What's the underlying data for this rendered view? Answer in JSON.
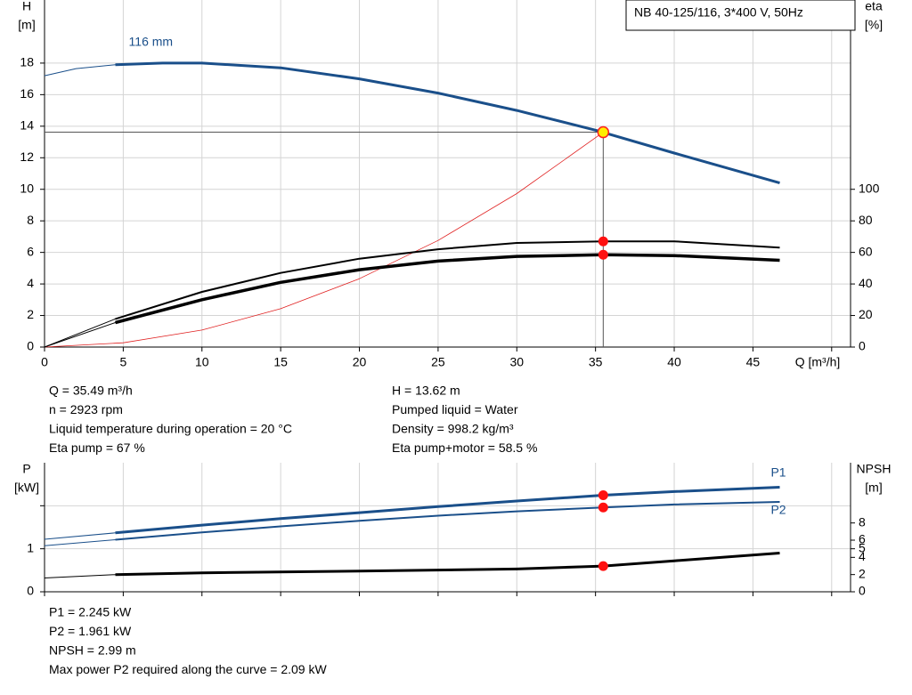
{
  "chart_data": [
    {
      "type": "line",
      "title": "NB 40-125/116, 3*400 V, 50Hz",
      "x_label": "Q [m³/h]",
      "y_label": [
        "H",
        "[m]"
      ],
      "y2_label": [
        "eta",
        "[%]"
      ],
      "xlim": [
        0,
        51.2
      ],
      "ylim": [
        0,
        22
      ],
      "y2lim": [
        0,
        220
      ],
      "xticks": [
        0,
        5,
        10,
        15,
        20,
        25,
        30,
        35,
        40,
        45,
        {
          "value": 50,
          "label": null
        }
      ],
      "yticks": [
        0,
        2,
        4,
        6,
        8,
        10,
        12,
        14,
        16,
        18
      ],
      "y2ticks": [
        0,
        20,
        40,
        60,
        80,
        100
      ],
      "grid": true,
      "series": [
        {
          "color": "#1a4f8a",
          "width": 1,
          "axis": "y",
          "x": [
            0,
            2,
            4.5
          ],
          "values": [
            17.2,
            17.65,
            17.9
          ]
        },
        {
          "name": "116 mm",
          "color": "#1a4f8a",
          "width": 3,
          "axis": "y",
          "x": [
            4.5,
            7.5,
            10,
            15,
            20,
            25,
            30,
            35,
            40,
            46.7
          ],
          "values": [
            17.9,
            18.0,
            18.0,
            17.7,
            17.0,
            16.1,
            15.0,
            13.75,
            12.3,
            10.4
          ]
        },
        {
          "color": "#e02020",
          "width": 0.8,
          "axis": "y",
          "x": [
            0,
            5,
            10,
            15,
            20,
            25,
            30,
            35.49
          ],
          "values": [
            0,
            0.27,
            1.08,
            2.43,
            4.33,
            6.76,
            9.73,
            13.62
          ]
        },
        {
          "color": "#000000",
          "width": 1,
          "axis": "y2",
          "x": [
            0,
            4.5
          ],
          "values": [
            0,
            17.8
          ]
        },
        {
          "color": "#000000",
          "width": 2,
          "axis": "y2",
          "x": [
            4.5,
            10,
            15,
            20,
            25,
            30,
            35.49,
            40,
            46.7
          ],
          "values": [
            17.8,
            35,
            47,
            56,
            62,
            66,
            67,
            67,
            63
          ]
        },
        {
          "color": "#000000",
          "width": 1,
          "axis": "y2",
          "x": [
            0,
            4.5
          ],
          "values": [
            0,
            15.5
          ]
        },
        {
          "color": "#000000",
          "width": 3.5,
          "axis": "y2",
          "x": [
            4.5,
            10,
            15,
            20,
            25,
            30,
            35.49,
            40,
            46.7
          ],
          "values": [
            15.5,
            30,
            41,
            49,
            54.5,
            57.5,
            58.5,
            58,
            55
          ]
        }
      ],
      "operating_point": {
        "x": 35.49,
        "y": 13.62,
        "color": "#ffee00"
      },
      "markers": [
        {
          "x": 35.49,
          "y": 67,
          "axis": "y2",
          "color": "#ff1010"
        },
        {
          "x": 35.49,
          "y": 58.5,
          "axis": "y2",
          "color": "#ff1010"
        }
      ],
      "notes_left": [
        "Q = 35.49 m³/h",
        "n = 2923 rpm",
        "Liquid temperature during operation = 20 °C",
        "Eta pump = 67 %"
      ],
      "notes_right": [
        "H = 13.62 m",
        "Pumped liquid = Water",
        "Density = 998.2 kg/m³",
        "Eta pump+motor = 58.5 %"
      ]
    },
    {
      "type": "line",
      "y_label": [
        "P",
        "[kW]"
      ],
      "y2_label": [
        "NPSH",
        "[m]"
      ],
      "xlim": [
        0,
        51.2
      ],
      "ylim": [
        0,
        3
      ],
      "y2lim": [
        0,
        15
      ],
      "xticks": [
        0,
        5,
        10,
        15,
        20,
        25,
        30,
        35,
        40,
        45,
        50
      ],
      "yticks": [
        0,
        1,
        {
          "value": 2,
          "label": null
        }
      ],
      "y2ticks": [
        0,
        2,
        4,
        5,
        6,
        8
      ],
      "grid": true,
      "series": [
        {
          "color": "#1a4f8a",
          "width": 1,
          "axis": "y",
          "x": [
            0,
            4.5
          ],
          "values": [
            1.22,
            1.37
          ]
        },
        {
          "name": "P1",
          "color": "#1a4f8a",
          "width": 3,
          "axis": "y",
          "x": [
            4.5,
            10,
            15,
            20,
            25,
            30,
            35.49,
            40,
            46.7
          ],
          "values": [
            1.37,
            1.55,
            1.7,
            1.84,
            1.98,
            2.11,
            2.245,
            2.33,
            2.43
          ]
        },
        {
          "color": "#1a4f8a",
          "width": 1,
          "axis": "y",
          "x": [
            0,
            4.5
          ],
          "values": [
            1.07,
            1.21
          ]
        },
        {
          "name": "P2",
          "color": "#1a4f8a",
          "width": 2,
          "axis": "y",
          "x": [
            4.5,
            10,
            15,
            20,
            25,
            30,
            35.49,
            40,
            46.7
          ],
          "values": [
            1.21,
            1.38,
            1.52,
            1.65,
            1.77,
            1.87,
            1.961,
            2.03,
            2.09
          ]
        },
        {
          "color": "#000000",
          "width": 1,
          "axis": "y2",
          "x": [
            0,
            4.5
          ],
          "values": [
            1.6,
            2.0
          ]
        },
        {
          "color": "#000000",
          "width": 3,
          "axis": "y2",
          "x": [
            4.5,
            10,
            20,
            30,
            35.49,
            40,
            46.7
          ],
          "values": [
            2.0,
            2.2,
            2.4,
            2.65,
            2.99,
            3.6,
            4.5
          ]
        }
      ],
      "markers": [
        {
          "x": 35.49,
          "y": 2.245,
          "axis": "y",
          "color": "#ff1010"
        },
        {
          "x": 35.49,
          "y": 1.961,
          "axis": "y",
          "color": "#ff1010"
        },
        {
          "x": 35.49,
          "y": 2.99,
          "axis": "y2",
          "color": "#ff1010"
        }
      ],
      "notes": [
        "P1 = 2.245 kW",
        "P2 = 1.961 kW",
        "NPSH = 2.99 m",
        "Max power P2 required along the curve = 2.09 kW"
      ]
    }
  ]
}
